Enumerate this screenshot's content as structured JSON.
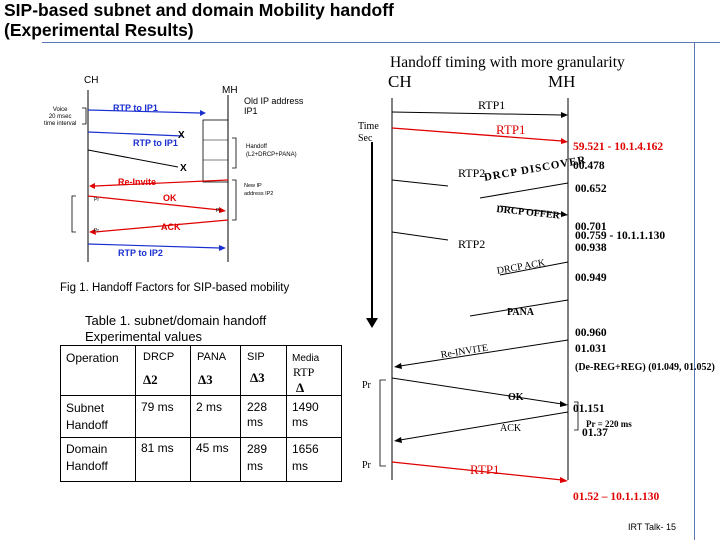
{
  "title": {
    "line1": "SIP-based  subnet and domain Mobility handoff",
    "line2": "(Experimental Results)"
  },
  "left_figure": {
    "ch": "CH",
    "mh": "MH",
    "voice_note": [
      "Voice",
      "20 msec",
      "time interval"
    ],
    "old_ip": [
      "Old IP address",
      "IP1"
    ],
    "rtp_to_ip1_top": "RTP to IP1",
    "rtp_to_ip1_x": "RTP to IP1",
    "x_mark_1": "X",
    "x_mark_2": "X",
    "handoff_note": [
      "Handoff",
      "(L2+DRCP+PANA)"
    ],
    "reinvite": "Re-Invite",
    "ok": "OK",
    "new_ip": [
      "New IP",
      "address IP2"
    ],
    "pr1": "Pr",
    "pr2": "Pr",
    "pr3": "Pr",
    "ack": "ACK",
    "rtp_to_ip2": "RTP to IP2",
    "caption": "Fig 1. Handoff Factors for SIP-based mobility"
  },
  "right_figure": {
    "heading": "Handoff timing with more granularity",
    "ch": "CH",
    "mh": "MH",
    "time_label": [
      "Time",
      "Sec"
    ],
    "rtp1_top": "RTP1",
    "rtp1_red": "RTP1",
    "t1": "59.521 - 10.1.4.162",
    "t2": "00.478",
    "rtp2_a": "RTP2",
    "discover": "DRCP DISCOVER",
    "t3": "00.652",
    "offer": "DRCP OFFER",
    "t4": "00.701",
    "t5": "00.759 - 10.1.1.130",
    "rtp2_b": "RTP2",
    "t6": "00.938",
    "drcp_ack": "DRCP ACK",
    "t7": "00.949",
    "pana": "PANA",
    "t8": "00.960",
    "t9": "01.031",
    "reinvite": "Re-INVITE",
    "dereg": "(De-REG+REG) (01.049, 01.052)",
    "pr_a": "Pr",
    "ok": "OK",
    "t10": "01.151",
    "ack": "ACK",
    "pr_note": "Pr = 220 ms",
    "t11": "01.37",
    "pr_b": "Pr",
    "rtp1_bottom": "RTP1",
    "t12": "01.52 – 10.1.1.130"
  },
  "table": {
    "caption_line1": "Table 1. subnet/domain handoff",
    "caption_line2": "Experimental values",
    "header": [
      "Operation",
      "DRCP",
      "PANA",
      "SIP",
      "Media"
    ],
    "media_sub": "RTP",
    "deltas": [
      "Δ2",
      "Δ3",
      "Δ3",
      "Δ"
    ],
    "rows": [
      {
        "label1": "Subnet",
        "label2": "Handoff",
        "drcp": "79 ms",
        "pana": "2 ms",
        "sip1": "228",
        "sip2": "ms",
        "media1": "1490",
        "media2": "ms"
      },
      {
        "label1": "Domain",
        "label2": "Handoff",
        "drcp": "81 ms",
        "pana": "45 ms",
        "sip1": "289",
        "sip2": "ms",
        "media1": "1656",
        "media2": "ms"
      }
    ]
  },
  "footer": "IRT Talk- 15",
  "colors": {
    "red": "#e00000",
    "blue": "#1a2fd0",
    "frame": "#5a78b4"
  }
}
